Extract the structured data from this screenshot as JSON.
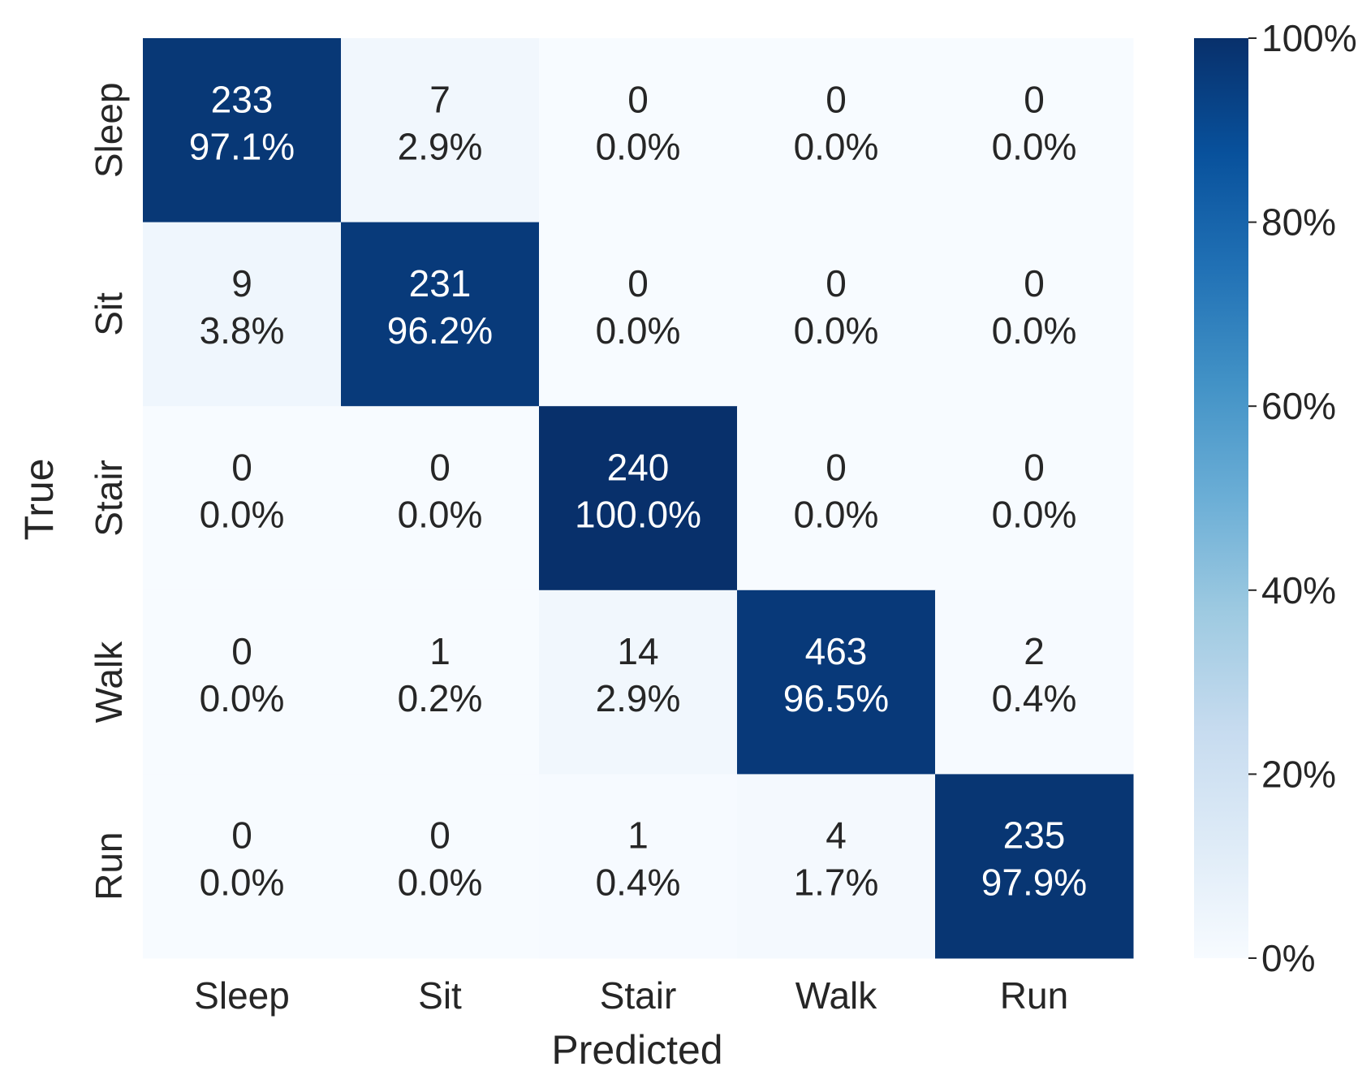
{
  "chart_data": {
    "type": "heatmap",
    "title": "",
    "xlabel": "Predicted",
    "ylabel": "True",
    "x_categories": [
      "Sleep",
      "Sit",
      "Stair",
      "Walk",
      "Run"
    ],
    "y_categories": [
      "Sleep",
      "Sit",
      "Stair",
      "Walk",
      "Run"
    ],
    "counts": [
      [
        233,
        7,
        0,
        0,
        0
      ],
      [
        9,
        231,
        0,
        0,
        0
      ],
      [
        0,
        0,
        240,
        0,
        0
      ],
      [
        0,
        1,
        14,
        463,
        2
      ],
      [
        0,
        0,
        1,
        4,
        235
      ]
    ],
    "percentages": [
      [
        97.1,
        2.9,
        0.0,
        0.0,
        0.0
      ],
      [
        3.8,
        96.2,
        0.0,
        0.0,
        0.0
      ],
      [
        0.0,
        0.0,
        100.0,
        0.0,
        0.0
      ],
      [
        0.0,
        0.2,
        2.9,
        96.5,
        0.4
      ],
      [
        0.0,
        0.0,
        0.4,
        1.7,
        97.9
      ]
    ],
    "colorbar": {
      "range": [
        0,
        100
      ],
      "ticks": [
        "0%",
        "20%",
        "40%",
        "60%",
        "80%",
        "100%"
      ],
      "colormap": "Blues",
      "low_color": "#f7fbff",
      "high_color": "#08306b"
    },
    "grid": false
  }
}
